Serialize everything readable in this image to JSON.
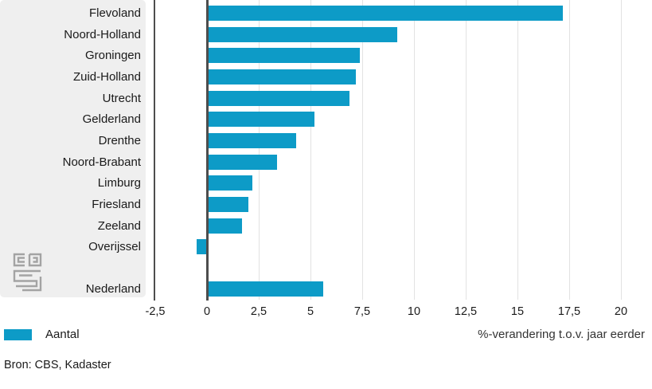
{
  "chart_data": {
    "type": "bar",
    "orientation": "horizontal",
    "title": "",
    "xlabel": "%-verandering t.o.v. jaar eerder",
    "ylabel": "",
    "categories": [
      "Flevoland",
      "Noord-Holland",
      "Groningen",
      "Zuid-Holland",
      "Utrecht",
      "Gelderland",
      "Drenthe",
      "Noord-Brabant",
      "Limburg",
      "Friesland",
      "Zeeland",
      "Overijssel",
      "Nederland"
    ],
    "values": [
      17.2,
      9.2,
      7.4,
      7.2,
      6.9,
      5.2,
      4.3,
      3.4,
      2.2,
      2.0,
      1.7,
      -0.5,
      5.6
    ],
    "series_name": "Aantal",
    "xlim": [
      -2.5,
      20
    ],
    "x_ticks": [
      {
        "label": "-2,5",
        "value": -2.5
      },
      {
        "label": "0",
        "value": 0
      },
      {
        "label": "2,5",
        "value": 2.5
      },
      {
        "label": "5",
        "value": 5
      },
      {
        "label": "7,5",
        "value": 7.5
      },
      {
        "label": "10",
        "value": 10
      },
      {
        "label": "12,5",
        "value": 12.5
      },
      {
        "label": "15",
        "value": 15
      },
      {
        "label": "17,5",
        "value": 17.5
      },
      {
        "label": "20",
        "value": 20
      }
    ],
    "gap_before_last": true,
    "grid": true,
    "legend_position": "bottom-left",
    "bar_color": "#0d9bc7"
  },
  "legend": {
    "label": "Aantal",
    "swatch_color": "#0d9bc7"
  },
  "source": "Bron: CBS, Kadaster",
  "logo_name": "cbs-logo",
  "colors": {
    "panel_bg": "#efefef",
    "axis_dark": "#4d4d4d",
    "gridline": "#e2e2e2",
    "logo_gray": "#a3a3a3"
  }
}
